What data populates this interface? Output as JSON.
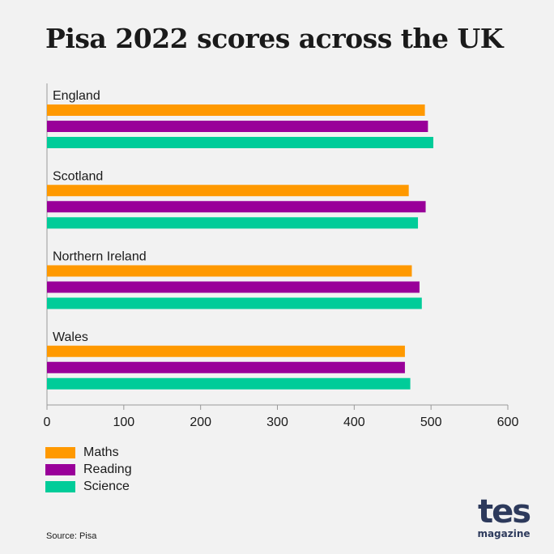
{
  "title": "Pisa 2022 scores across the UK",
  "source": "Source: Pisa",
  "logo": {
    "main": "tes",
    "sub": "magazine"
  },
  "colors": {
    "Maths": "#ff9900",
    "Reading": "#990099",
    "Science": "#00cc99",
    "axis": "#999999",
    "text": "#1a1a1a"
  },
  "legend": [
    "Maths",
    "Reading",
    "Science"
  ],
  "chart_data": {
    "type": "bar",
    "orientation": "horizontal",
    "categories": [
      "England",
      "Scotland",
      "Northern Ireland",
      "Wales"
    ],
    "series": [
      {
        "name": "Maths",
        "values": [
          492,
          471,
          475,
          466
        ]
      },
      {
        "name": "Reading",
        "values": [
          496,
          493,
          485,
          466
        ]
      },
      {
        "name": "Science",
        "values": [
          503,
          483,
          488,
          473
        ]
      }
    ],
    "xlim": [
      0,
      600
    ],
    "xticks": [
      "0",
      "100",
      "200",
      "300",
      "400",
      "500",
      "600"
    ],
    "xlabel": "",
    "ylabel": "",
    "grid": false,
    "legend_position": "bottom-left"
  }
}
